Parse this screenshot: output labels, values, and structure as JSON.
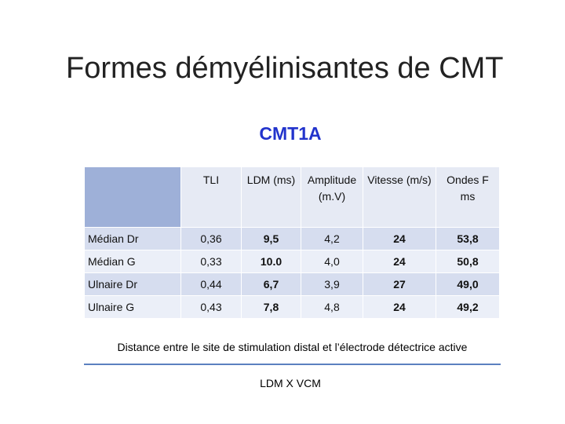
{
  "header": {
    "title": "Formes démyélinisantes de CMT",
    "subtitle": "CMT1A"
  },
  "table": {
    "columns": [
      "",
      "TLI",
      "LDM (ms)",
      "Amplitude (m.V)",
      "Vitesse (m/s)",
      "Ondes F ms"
    ],
    "rows": [
      [
        "Médian Dr",
        "0,36",
        "9,5",
        "4,2",
        "24",
        "53,8"
      ],
      [
        "Médian G",
        "0,33",
        "10.0",
        "4,0",
        "24",
        "50,8"
      ],
      [
        "Ulnaire Dr",
        "0,44",
        "6,7",
        "3,9",
        "27",
        "49,0"
      ],
      [
        "Ulnaire G",
        "0,43",
        "7,8",
        "4,8",
        "24",
        "49,2"
      ]
    ]
  },
  "footer": {
    "note": "Distance entre le site de stimulation distal et l’électrode détectrice active",
    "formula": "LDM X VCM"
  }
}
